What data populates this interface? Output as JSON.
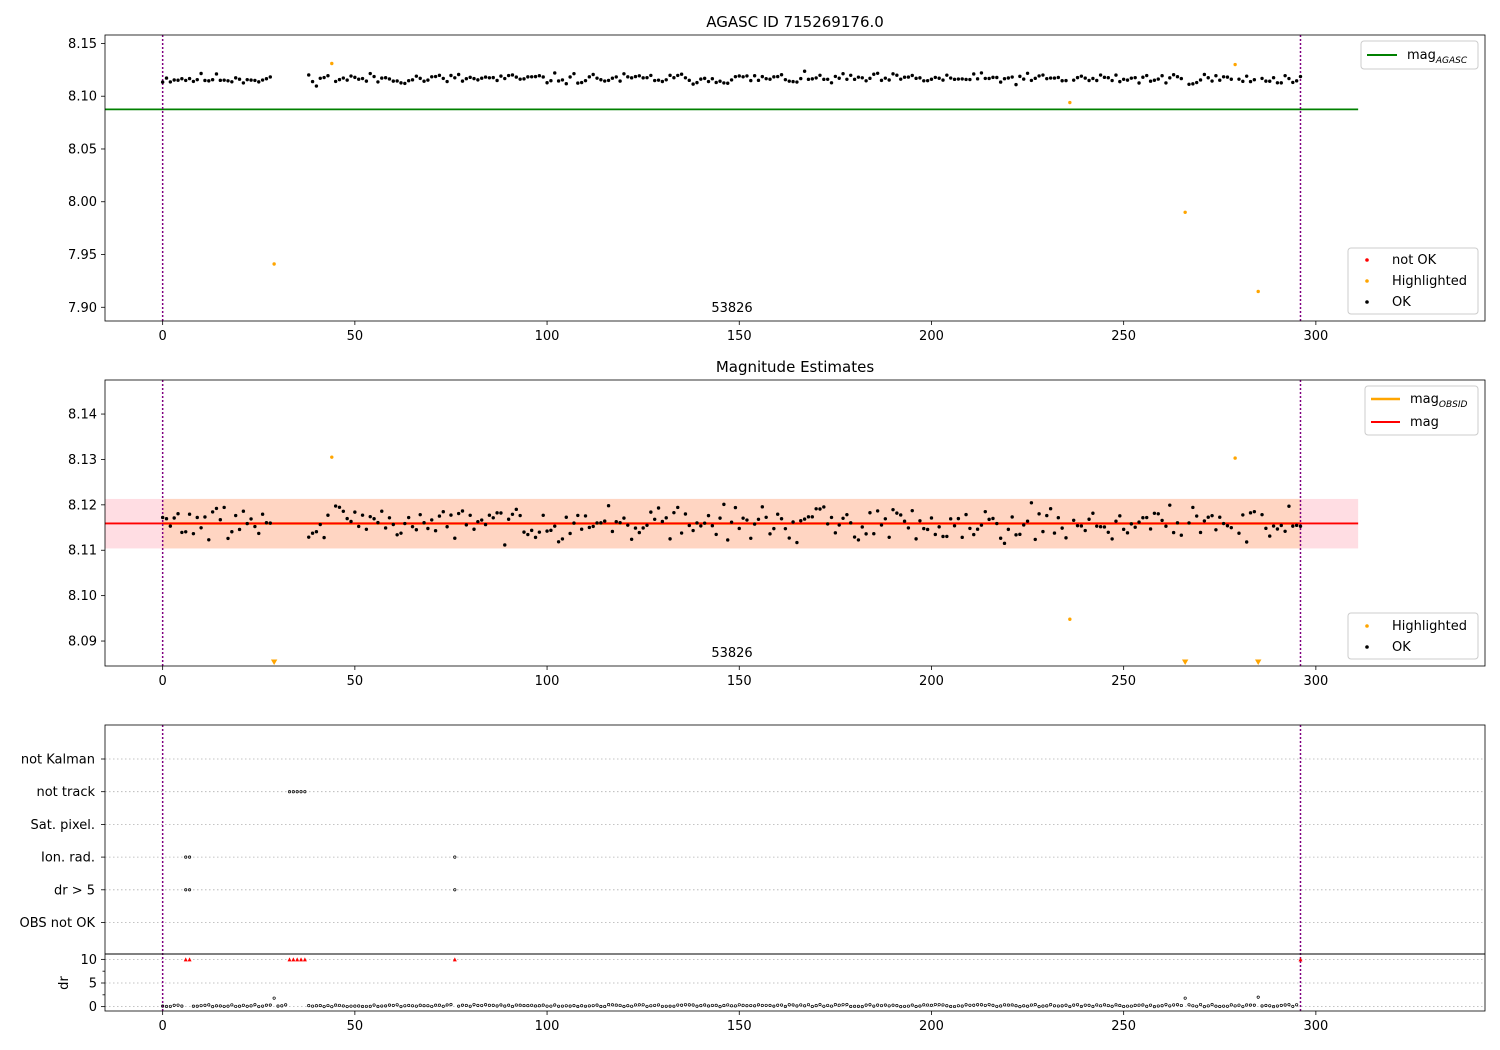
{
  "colors": {
    "ok": "#000000",
    "not_ok": "#ff0000",
    "highlighted": "#ffa500",
    "mag_agasc": "#008000",
    "mag_obsid": "#ffa500",
    "mag": "#ff0000",
    "obs_boundary": "#800080",
    "band_outer": "#ffdde3",
    "band_inner": "#ffd5c2"
  },
  "chart_data": [
    {
      "type": "scatter",
      "title": "AGASC ID 715269176.0",
      "xlabel": "",
      "ylabel": "",
      "xlim": [
        -15,
        344
      ],
      "ylim": [
        7.887,
        8.158
      ],
      "xticks": [
        0,
        50,
        100,
        150,
        200,
        250,
        300
      ],
      "yticks": [
        "7.90",
        "7.95",
        "8.00",
        "8.05",
        "8.10",
        "8.15"
      ],
      "obsid_label": "53826",
      "obs_boundaries": [
        0,
        296
      ],
      "legend_location": "top-right and bottom-right",
      "legend_top": [
        {
          "label": "mag",
          "sub": "AGASC",
          "kind": "line",
          "color_key": "mag_agasc"
        }
      ],
      "legend_bottom": [
        {
          "label": "not OK",
          "kind": "point",
          "color_key": "not_ok"
        },
        {
          "label": "Highlighted",
          "kind": "point",
          "color_key": "highlighted"
        },
        {
          "label": "OK",
          "kind": "point",
          "color_key": "ok"
        }
      ],
      "hlines": [
        {
          "name": "mag_AGASC",
          "y": 8.0875,
          "x_range": [
            -15,
            311
          ]
        }
      ],
      "series": [
        {
          "name": "OK",
          "x_range": [
            0,
            296
          ],
          "y_center": 8.1165,
          "y_jitter": 0.0075,
          "skip_x": [
            29,
            30,
            31,
            32,
            33,
            34,
            35,
            36,
            37,
            44,
            236,
            266,
            279,
            285
          ]
        },
        {
          "name": "Highlighted",
          "x": [
            29,
            44,
            236,
            266,
            279,
            285
          ],
          "y": [
            7.941,
            8.131,
            8.094,
            7.99,
            8.13,
            7.915
          ]
        }
      ]
    },
    {
      "type": "scatter",
      "title": "Magnitude Estimates",
      "xlabel": "",
      "ylabel": "",
      "xlim": [
        -15,
        344
      ],
      "ylim": [
        8.0845,
        8.1475
      ],
      "xticks": [
        0,
        50,
        100,
        150,
        200,
        250,
        300
      ],
      "yticks": [
        "8.09",
        "8.10",
        "8.11",
        "8.12",
        "8.13",
        "8.14"
      ],
      "obsid_label": "53826",
      "obs_boundaries": [
        0,
        296
      ],
      "legend_location": "top-right and bottom-right",
      "legend_top": [
        {
          "label": "mag",
          "sub": "OBSID",
          "kind": "line",
          "color_key": "mag_obsid"
        },
        {
          "label": "mag",
          "kind": "line",
          "color_key": "mag"
        }
      ],
      "legend_bottom": [
        {
          "label": "Highlighted",
          "kind": "point",
          "color_key": "highlighted"
        },
        {
          "label": "OK",
          "kind": "point",
          "color_key": "ok"
        }
      ],
      "mag": 8.1159,
      "mag_band": [
        8.1104,
        8.1213
      ],
      "mag_band_x": [
        -15,
        311
      ],
      "obsid_band_x": [
        0,
        296
      ],
      "series": [
        {
          "name": "OK",
          "x_range": [
            0,
            296
          ],
          "y_center": 8.116,
          "y_jitter": 0.0055,
          "skip_x": [
            29,
            30,
            31,
            32,
            33,
            34,
            35,
            36,
            37,
            44,
            236,
            266,
            279,
            285
          ]
        },
        {
          "name": "Highlighted",
          "x": [
            44,
            236,
            279
          ],
          "y": [
            8.1305,
            8.0948,
            8.1303
          ]
        },
        {
          "name": "Highlighted (below axis)",
          "x": [
            29,
            266,
            285
          ],
          "y": [
            8.085,
            8.085,
            8.085
          ]
        }
      ]
    },
    {
      "type": "scatter",
      "title": "",
      "xlabel": "",
      "ylabel": "dr",
      "xlim": [
        -15,
        344
      ],
      "xticks": [
        0,
        50,
        100,
        150,
        200,
        250,
        300
      ],
      "obs_boundaries": [
        0,
        296
      ],
      "flag_rows": [
        "not Kalman",
        "not track",
        "Sat. pixel.",
        "Ion. rad.",
        "dr > 5",
        "OBS not OK"
      ],
      "flag_points": {
        "not Kalman": [],
        "not track": [
          33,
          34,
          35,
          36,
          37
        ],
        "Sat. pixel.": [],
        "Ion. rad.": [
          6,
          7,
          76
        ],
        "dr > 5": [
          6,
          7,
          76
        ],
        "OBS not OK": []
      },
      "dr_ylim": [
        -0.5,
        10.5
      ],
      "dr_yticks": [
        0,
        5,
        10
      ],
      "dr_points": [
        {
          "x": 29,
          "y": 1.8
        },
        {
          "x": 266,
          "y": 1.8
        },
        {
          "x": 285,
          "y": 2.0
        }
      ],
      "dr_clipped_x": [
        6,
        7,
        33,
        34,
        35,
        36,
        37,
        76,
        296
      ]
    }
  ]
}
